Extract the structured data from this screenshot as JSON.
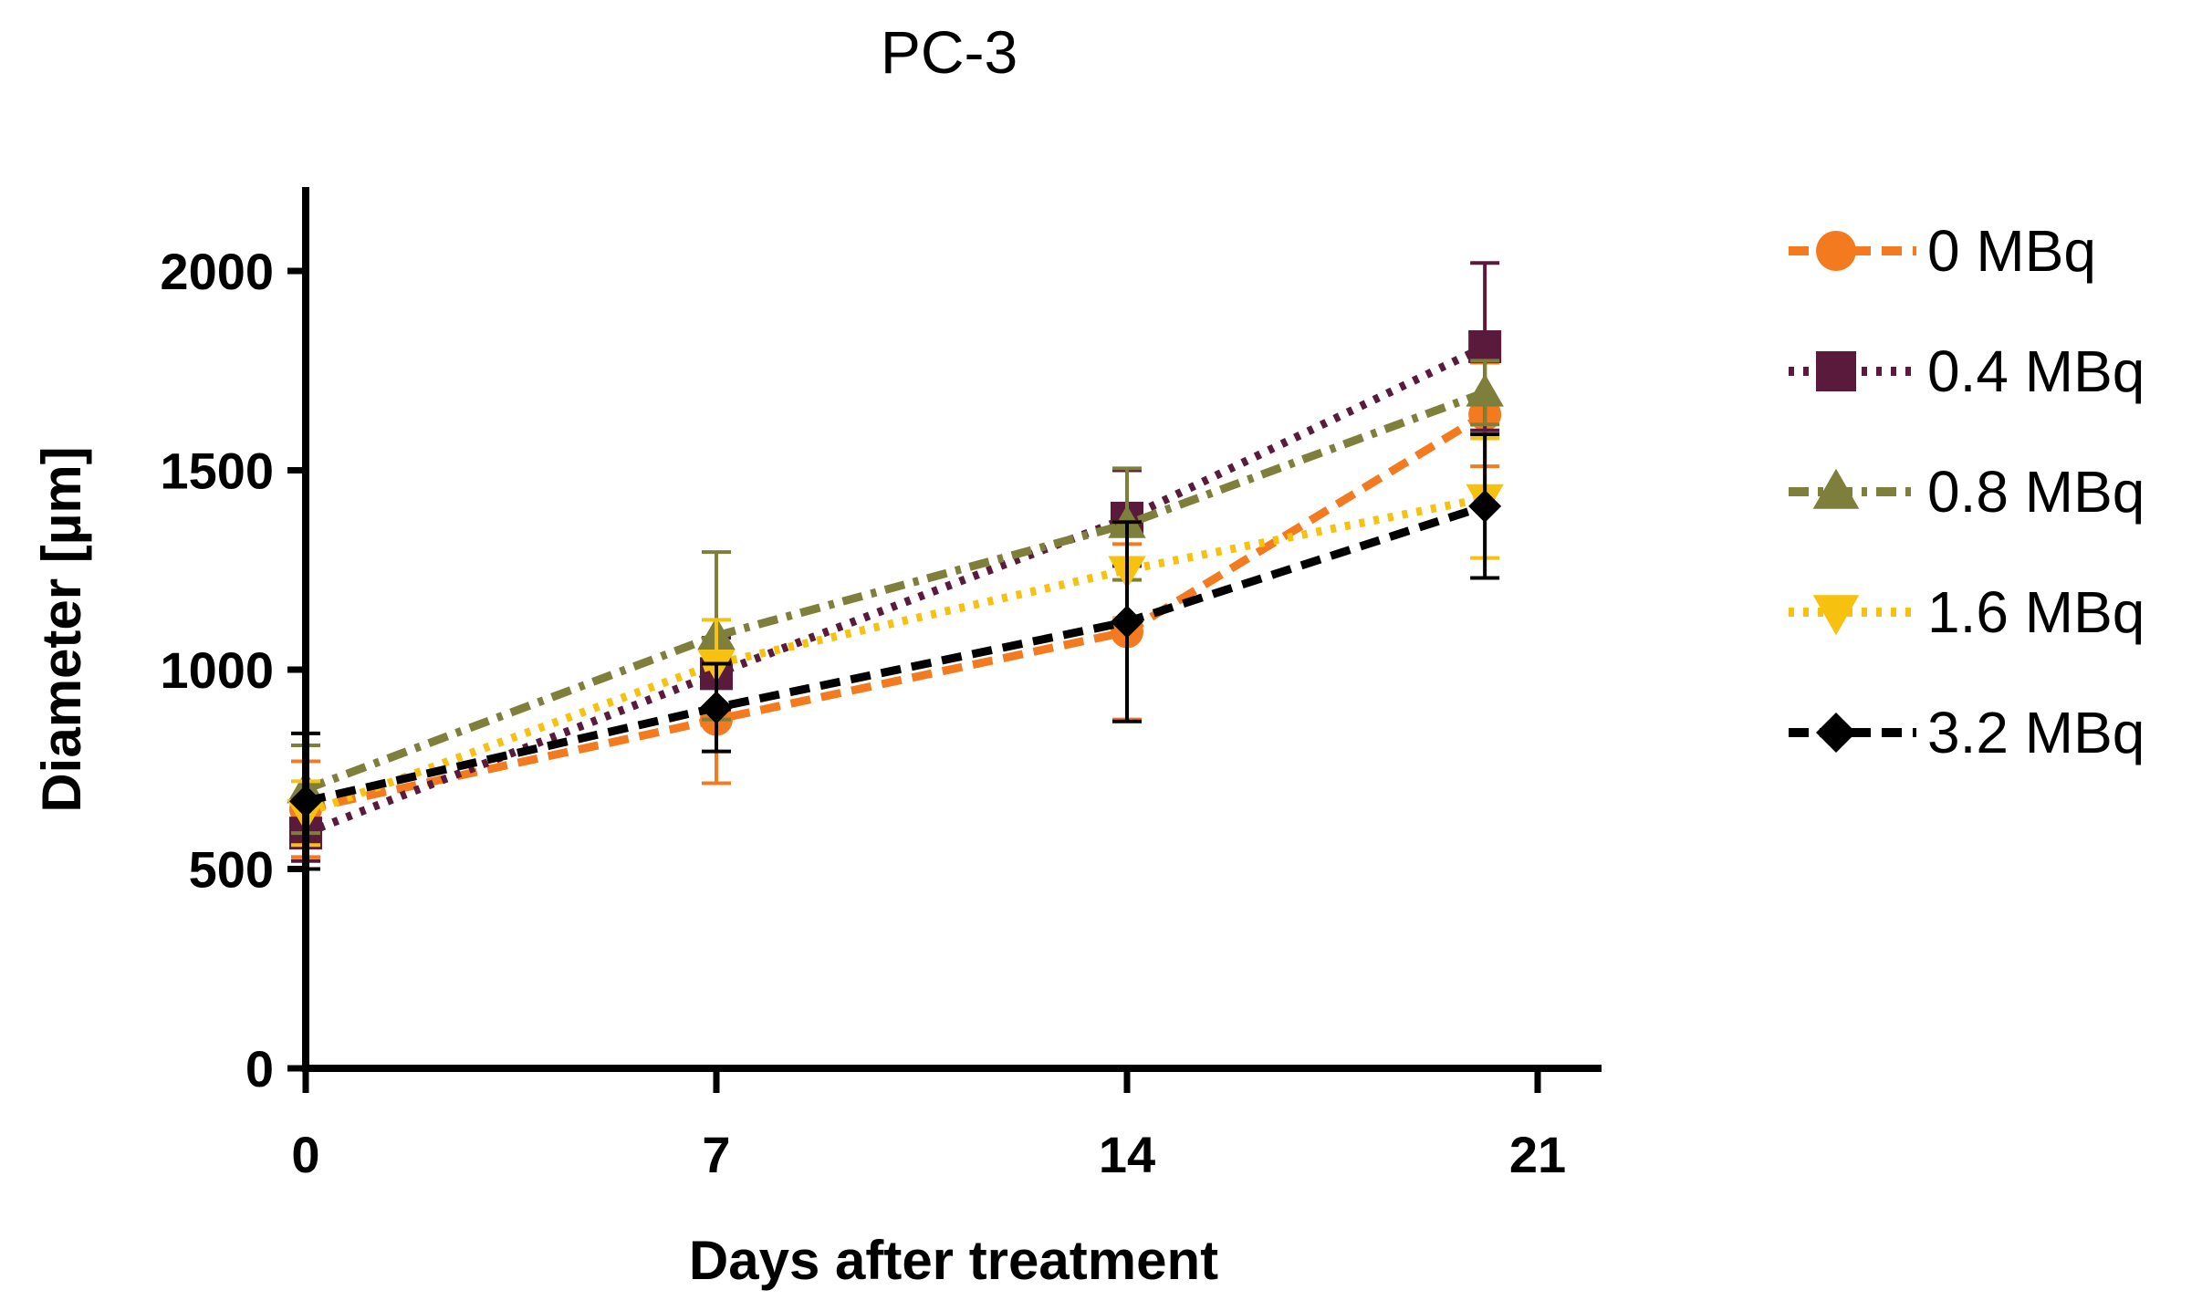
{
  "chart_data": {
    "type": "line",
    "title": "PC-3",
    "xlabel": "Days after treatment",
    "ylabel": "Diameter [µm]",
    "xlim": [
      0,
      21
    ],
    "ylim": [
      0,
      2200
    ],
    "xticks": [
      0,
      7,
      14,
      21
    ],
    "xtick_labels": [
      "0",
      "7",
      "14",
      "21"
    ],
    "yticks": [
      0,
      500,
      1000,
      1500,
      2000
    ],
    "ytick_labels": [
      "0",
      "500",
      "1000",
      "1500",
      "2000"
    ],
    "grid": false,
    "legend_position": "right",
    "series": [
      {
        "name": "0 MBq",
        "color": "#F47A20",
        "marker": "circle",
        "dash": "dashed",
        "x": [
          0,
          7,
          14,
          20.1
        ],
        "y": [
          650,
          875,
          1095,
          1640
        ],
        "err": [
          120,
          160,
          220,
          130
        ]
      },
      {
        "name": "0.4 MBq",
        "color": "#5A1A3C",
        "marker": "square",
        "dash": "dotted",
        "x": [
          0,
          7,
          14,
          20.1
        ],
        "y": [
          590,
          990,
          1380,
          1810
        ],
        "err": [
          70,
          90,
          120,
          210
        ]
      },
      {
        "name": "0.8 MBq",
        "color": "#7E7F3A",
        "marker": "triangle-up",
        "dash": "dashdot",
        "x": [
          0,
          7,
          14,
          20.1
        ],
        "y": [
          700,
          1085,
          1365,
          1695
        ],
        "err": [
          110,
          210,
          140,
          80
        ]
      },
      {
        "name": "1.6 MBq",
        "color": "#F7C10F",
        "marker": "triangle-down",
        "dash": "dotted",
        "x": [
          0,
          7,
          14,
          20.1
        ],
        "y": [
          640,
          1015,
          1250,
          1430
        ],
        "err": [
          80,
          110,
          120,
          150
        ]
      },
      {
        "name": "3.2 MBq",
        "color": "#000000",
        "marker": "diamond",
        "dash": "dashed",
        "x": [
          0,
          7,
          14,
          20.1
        ],
        "y": [
          670,
          905,
          1120,
          1410
        ],
        "err": [
          170,
          110,
          250,
          180
        ]
      }
    ]
  }
}
